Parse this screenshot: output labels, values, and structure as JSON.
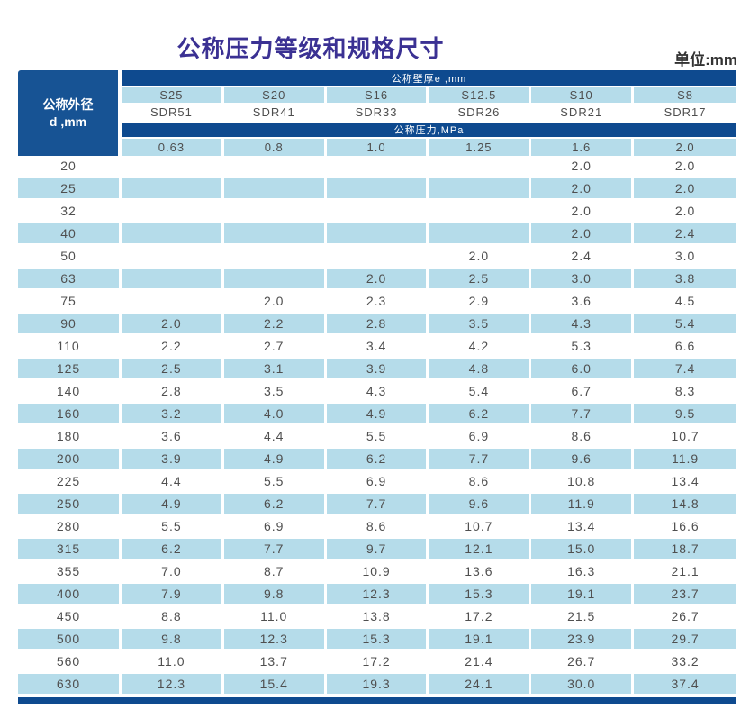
{
  "title": "公称压力等级和规格尺寸",
  "unit_label": "单位:mm",
  "colors": {
    "band_blue": "#0e4a8f",
    "corner_blue": "#175394",
    "stripe_blue": "#b5dcea",
    "title_purple": "#3b3193",
    "data_text": "#4f4f4f"
  },
  "table": {
    "corner_header": {
      "line1": "公称外径",
      "line2": "d ,mm"
    },
    "wall_thickness_header": "公称壁厚e ,mm",
    "pressure_header": "公称压力,MPa",
    "series_labels": [
      "S25",
      "S20",
      "S16",
      "S12.5",
      "S10",
      "S8"
    ],
    "sdr_labels": [
      "SDR51",
      "SDR41",
      "SDR33",
      "SDR26",
      "SDR21",
      "SDR17"
    ],
    "pressure_values": [
      "0.63",
      "0.8",
      "1.0",
      "1.25",
      "1.6",
      "2.0"
    ],
    "rows": [
      {
        "d": "20",
        "values": [
          "",
          "",
          "",
          "",
          "2.0",
          "2.0"
        ]
      },
      {
        "d": "25",
        "values": [
          "",
          "",
          "",
          "",
          "2.0",
          "2.0"
        ]
      },
      {
        "d": "32",
        "values": [
          "",
          "",
          "",
          "",
          "2.0",
          "2.0"
        ]
      },
      {
        "d": "40",
        "values": [
          "",
          "",
          "",
          "",
          "2.0",
          "2.4"
        ]
      },
      {
        "d": "50",
        "values": [
          "",
          "",
          "",
          "2.0",
          "2.4",
          "3.0"
        ]
      },
      {
        "d": "63",
        "values": [
          "",
          "",
          "2.0",
          "2.5",
          "3.0",
          "3.8"
        ]
      },
      {
        "d": "75",
        "values": [
          "",
          "2.0",
          "2.3",
          "2.9",
          "3.6",
          "4.5"
        ]
      },
      {
        "d": "90",
        "values": [
          "2.0",
          "2.2",
          "2.8",
          "3.5",
          "4.3",
          "5.4"
        ]
      },
      {
        "d": "110",
        "values": [
          "2.2",
          "2.7",
          "3.4",
          "4.2",
          "5.3",
          "6.6"
        ]
      },
      {
        "d": "125",
        "values": [
          "2.5",
          "3.1",
          "3.9",
          "4.8",
          "6.0",
          "7.4"
        ]
      },
      {
        "d": "140",
        "values": [
          "2.8",
          "3.5",
          "4.3",
          "5.4",
          "6.7",
          "8.3"
        ]
      },
      {
        "d": "160",
        "values": [
          "3.2",
          "4.0",
          "4.9",
          "6.2",
          "7.7",
          "9.5"
        ]
      },
      {
        "d": "180",
        "values": [
          "3.6",
          "4.4",
          "5.5",
          "6.9",
          "8.6",
          "10.7"
        ]
      },
      {
        "d": "200",
        "values": [
          "3.9",
          "4.9",
          "6.2",
          "7.7",
          "9.6",
          "11.9"
        ]
      },
      {
        "d": "225",
        "values": [
          "4.4",
          "5.5",
          "6.9",
          "8.6",
          "10.8",
          "13.4"
        ]
      },
      {
        "d": "250",
        "values": [
          "4.9",
          "6.2",
          "7.7",
          "9.6",
          "11.9",
          "14.8"
        ]
      },
      {
        "d": "280",
        "values": [
          "5.5",
          "6.9",
          "8.6",
          "10.7",
          "13.4",
          "16.6"
        ]
      },
      {
        "d": "315",
        "values": [
          "6.2",
          "7.7",
          "9.7",
          "12.1",
          "15.0",
          "18.7"
        ]
      },
      {
        "d": "355",
        "values": [
          "7.0",
          "8.7",
          "10.9",
          "13.6",
          "16.3",
          "21.1"
        ]
      },
      {
        "d": "400",
        "values": [
          "7.9",
          "9.8",
          "12.3",
          "15.3",
          "19.1",
          "23.7"
        ]
      },
      {
        "d": "450",
        "values": [
          "8.8",
          "11.0",
          "13.8",
          "17.2",
          "21.5",
          "26.7"
        ]
      },
      {
        "d": "500",
        "values": [
          "9.8",
          "12.3",
          "15.3",
          "19.1",
          "23.9",
          "29.7"
        ]
      },
      {
        "d": "560",
        "values": [
          "11.0",
          "13.7",
          "17.2",
          "21.4",
          "26.7",
          "33.2"
        ]
      },
      {
        "d": "630",
        "values": [
          "12.3",
          "15.4",
          "19.3",
          "24.1",
          "30.0",
          "37.4"
        ]
      }
    ]
  }
}
